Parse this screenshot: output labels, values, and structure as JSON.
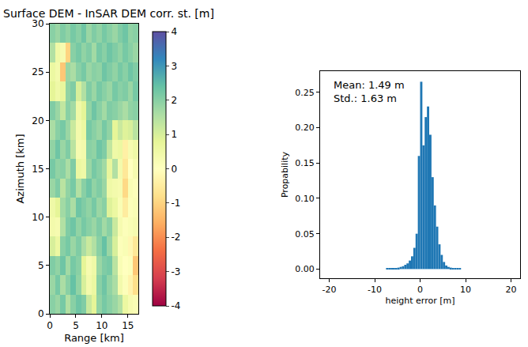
{
  "chart_data": [
    {
      "type": "heatmap",
      "title": "Surface DEM - InSAR DEM corr. st. [m]",
      "x_label": "Range [km]",
      "y_label": "Azimuth [km]",
      "x": [
        0.5,
        1.5,
        2.5,
        3.5,
        4.5,
        5.5,
        6.5,
        7.5,
        8.5,
        9.5,
        10.5,
        11.5,
        12.5,
        13.5,
        14.5,
        15.5,
        16.5
      ],
      "y": [
        1,
        3,
        5,
        7,
        9,
        11,
        13,
        15,
        17,
        19,
        21,
        23,
        25,
        27,
        29
      ],
      "z": [
        [
          2.0,
          1.8,
          2.2,
          1.5,
          2.0,
          2.3,
          2.1,
          1.2,
          0.8,
          1.9,
          2.2,
          2.0,
          1.8,
          1.5,
          0.6,
          0.3,
          0.2
        ],
        [
          1.8,
          2.2,
          1.6,
          2.0,
          2.4,
          1.9,
          1.0,
          0.4,
          0.6,
          2.0,
          2.3,
          1.9,
          1.6,
          0.4,
          0.1,
          -0.3,
          -0.8
        ],
        [
          2.1,
          1.9,
          2.3,
          1.7,
          2.2,
          2.0,
          0.8,
          0.3,
          0.5,
          1.8,
          2.1,
          2.2,
          1.4,
          0.2,
          0.0,
          0.1,
          -1.2
        ],
        [
          1.0,
          0.6,
          2.0,
          2.2,
          1.8,
          2.1,
          1.6,
          1.2,
          1.5,
          2.0,
          2.4,
          1.8,
          1.0,
          0.1,
          0.2,
          -0.2,
          -0.6
        ],
        [
          0.4,
          0.3,
          1.5,
          2.1,
          2.3,
          1.9,
          2.2,
          2.0,
          1.8,
          2.1,
          1.7,
          2.0,
          1.2,
          0.3,
          0.1,
          0.2,
          0.3
        ],
        [
          0.5,
          0.8,
          1.7,
          2.0,
          1.6,
          2.3,
          2.1,
          1.9,
          2.2,
          1.8,
          2.0,
          0.9,
          0.6,
          0.2,
          -0.5,
          0.1,
          0.2
        ],
        [
          1.8,
          2.1,
          1.4,
          1.9,
          2.2,
          1.5,
          2.0,
          2.3,
          1.9,
          2.1,
          1.8,
          0.5,
          0.4,
          0.3,
          -0.9,
          0.2,
          0.1
        ],
        [
          2.2,
          1.9,
          2.0,
          1.6,
          2.1,
          0.6,
          0.5,
          1.8,
          2.2,
          2.0,
          1.7,
          0.7,
          1.5,
          0.4,
          -0.6,
          0.0,
          0.3
        ],
        [
          1.9,
          2.3,
          1.8,
          2.1,
          1.4,
          0.3,
          0.4,
          2.0,
          1.9,
          2.3,
          2.1,
          1.3,
          0.5,
          0.6,
          -0.4,
          0.3,
          0.5
        ],
        [
          1.6,
          2.0,
          2.2,
          1.8,
          1.2,
          0.4,
          0.6,
          2.2,
          2.0,
          1.8,
          2.2,
          1.9,
          0.8,
          1.2,
          0.9,
          1.0,
          1.4
        ],
        [
          2.1,
          1.8,
          1.3,
          2.0,
          1.7,
          0.5,
          0.8,
          1.9,
          2.3,
          2.0,
          1.7,
          2.1,
          2.0,
          1.8,
          1.6,
          1.9,
          2.0
        ],
        [
          0.8,
          0.5,
          0.7,
          1.9,
          2.1,
          1.0,
          1.5,
          2.1,
          1.8,
          2.2,
          2.0,
          1.8,
          2.2,
          2.0,
          2.1,
          1.8,
          2.2
        ],
        [
          0.6,
          0.4,
          -1.2,
          1.8,
          1.6,
          2.0,
          2.2,
          1.8,
          2.0,
          1.9,
          2.3,
          2.1,
          1.9,
          2.2,
          2.0,
          2.3,
          2.1
        ],
        [
          1.5,
          0.5,
          0.3,
          -1.0,
          2.0,
          2.2,
          1.9,
          2.1,
          1.7,
          2.2,
          2.0,
          2.3,
          2.1,
          1.9,
          2.2,
          2.0,
          1.8
        ],
        [
          2.0,
          1.8,
          2.1,
          1.9,
          2.2,
          2.0,
          2.3,
          1.8,
          2.1,
          1.9,
          2.2,
          2.0,
          1.8,
          2.1,
          2.3,
          1.9,
          2.0
        ]
      ],
      "xlim": [
        0,
        17
      ],
      "ylim": [
        0,
        30
      ],
      "xticks": [
        0,
        5,
        10,
        15
      ],
      "yticks": [
        0,
        5,
        10,
        15,
        20,
        25,
        30
      ],
      "zlim": [
        -4,
        4
      ],
      "zticks": [
        -4,
        -3,
        -2,
        -1,
        0,
        1,
        2,
        3,
        4
      ]
    },
    {
      "type": "histogram",
      "x_label": "height error [m]",
      "y_label": "Propability",
      "bins": [
        -10,
        -9.5,
        -9,
        -8.5,
        -8,
        -7.5,
        -7,
        -6.5,
        -6,
        -5.5,
        -5,
        -4.5,
        -4,
        -3.5,
        -3,
        -2.5,
        -2,
        -1.5,
        -1,
        -0.5,
        0,
        0.5,
        1,
        1.5,
        2,
        2.5,
        3,
        3.5,
        4,
        4.5,
        5,
        5.5,
        6,
        6.5,
        7,
        7.5,
        8,
        8.5,
        9,
        9.5,
        10
      ],
      "values": [
        0,
        0,
        0,
        0,
        0,
        0.0005,
        0.0005,
        0.001,
        0.001,
        0.0015,
        0.002,
        0.003,
        0.004,
        0.006,
        0.008,
        0.012,
        0.018,
        0.03,
        0.05,
        0.16,
        0.265,
        0.175,
        0.215,
        0.23,
        0.19,
        0.13,
        0.09,
        0.06,
        0.035,
        0.02,
        0.01,
        0.005,
        0.003,
        0.002,
        0.001,
        0.001,
        0.0005,
        0.0005,
        0,
        0
      ],
      "color": "#1f77b4",
      "xlim": [
        -22,
        22
      ],
      "ylim": [
        -0.013,
        0.28
      ],
      "xticks": [
        -20,
        -10,
        0,
        10,
        20
      ],
      "yticks": [
        {
          "value": 0,
          "label": "0.00"
        },
        {
          "value": 0.05,
          "label": "0.05"
        },
        {
          "value": 0.1,
          "label": "0.10"
        },
        {
          "value": 0.15,
          "label": "0.15"
        },
        {
          "value": 0.2,
          "label": "0.20"
        },
        {
          "value": 0.25,
          "label": "0.25"
        }
      ],
      "annotations": [
        "Mean: 1.49 m",
        "Std.: 1.63 m"
      ]
    }
  ]
}
